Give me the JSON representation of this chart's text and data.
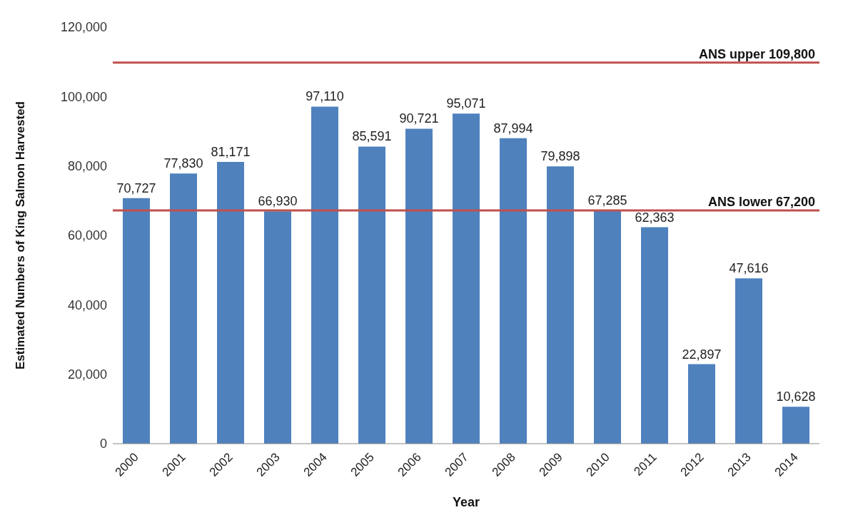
{
  "chart_data": {
    "type": "bar",
    "xlabel": "Year",
    "ylabel": "Estimated Numbers of King Salmon Harvested",
    "categories": [
      "2000",
      "2001",
      "2002",
      "2003",
      "2004",
      "2005",
      "2006",
      "2007",
      "2008",
      "2009",
      "2010",
      "2011",
      "2012",
      "2013",
      "2014"
    ],
    "values": [
      70727,
      77830,
      81171,
      66930,
      97110,
      85591,
      90721,
      95071,
      87994,
      79898,
      67285,
      62363,
      22897,
      47616,
      10628
    ],
    "color": "#4f81bd",
    "value_labels": [
      "70,727",
      "77,830",
      "81,171",
      "66,930",
      "97,110",
      "85,591",
      "90,721",
      "95,071",
      "87,994",
      "79,898",
      "67,285",
      "62,363",
      "22,897",
      "47,616",
      "10,628"
    ],
    "ylim": [
      0,
      120000
    ],
    "yticks": [
      {
        "value": 0,
        "label": "0"
      },
      {
        "value": 20000,
        "label": "20,000"
      },
      {
        "value": 40000,
        "label": "40,000"
      },
      {
        "value": 60000,
        "label": "60,000"
      },
      {
        "value": 80000,
        "label": "80,000"
      },
      {
        "value": 100000,
        "label": "100,000"
      },
      {
        "value": 120000,
        "label": "120,000"
      }
    ],
    "ref_lines": [
      {
        "axis": "y",
        "value": 109800,
        "label": "ANS upper 109,800",
        "color": "#c0504d"
      },
      {
        "axis": "y",
        "value": 67200,
        "label": "ANS lower 67,200",
        "color": "#c0504d"
      }
    ]
  }
}
